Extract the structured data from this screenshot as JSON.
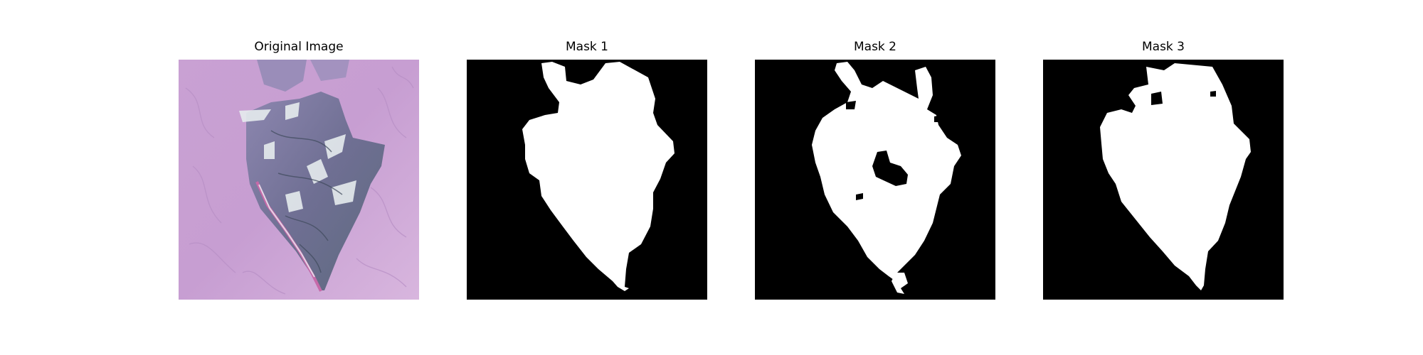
{
  "figure": {
    "panels": [
      {
        "title": "Original Image"
      },
      {
        "title": "Mask 1"
      },
      {
        "title": "Mask 2"
      },
      {
        "title": "Mask 3"
      }
    ]
  },
  "colors": {
    "mask_background": "#000000",
    "mask_foreground": "#ffffff",
    "skin_background": "#c9a3d4",
    "lesion_base": "#7b7a9f",
    "lesion_highlight": "#e9eef0",
    "lesion_edge_pink": "#c66aa9"
  }
}
